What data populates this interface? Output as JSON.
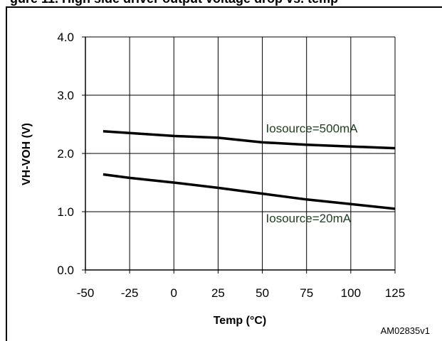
{
  "figure": {
    "header_text": "gure 11. High side driver output voltage drop vs. temp",
    "reference_code": "AM02835v1"
  },
  "chart_data": {
    "type": "line",
    "title": "",
    "xlabel": "Temp (°C)",
    "ylabel": "VH-VOH (V)",
    "xlim": [
      -50,
      125
    ],
    "ylim": [
      0,
      4
    ],
    "x_ticks": [
      -50,
      -25,
      0,
      25,
      50,
      75,
      100,
      125
    ],
    "x_tick_labels": [
      "-50",
      "-25",
      "0",
      "25",
      "50",
      "75",
      "100",
      "125"
    ],
    "y_ticks": [
      0,
      1,
      2,
      3,
      4
    ],
    "y_tick_labels": [
      "0.0",
      "1.0",
      "2.0",
      "3.0",
      "4.0"
    ],
    "grid": true,
    "legend": "none",
    "series": [
      {
        "name": "Iosource=500mA",
        "color": "#000000",
        "points": [
          [
            -40,
            2.38
          ],
          [
            -25,
            2.35
          ],
          [
            0,
            2.3
          ],
          [
            25,
            2.27
          ],
          [
            50,
            2.19
          ],
          [
            75,
            2.15
          ],
          [
            100,
            2.12
          ],
          [
            125,
            2.09
          ]
        ]
      },
      {
        "name": "Iosource=20mA",
        "color": "#000000",
        "points": [
          [
            -40,
            1.64
          ],
          [
            -25,
            1.58
          ],
          [
            0,
            1.5
          ],
          [
            25,
            1.41
          ],
          [
            50,
            1.31
          ],
          [
            75,
            1.21
          ],
          [
            100,
            1.13
          ],
          [
            125,
            1.05
          ]
        ]
      }
    ],
    "annotations": [
      {
        "text": "Iosource=500mA",
        "x": 52,
        "y": 2.36
      },
      {
        "text": "Iosource=20mA",
        "x": 52,
        "y": 0.82
      }
    ]
  }
}
